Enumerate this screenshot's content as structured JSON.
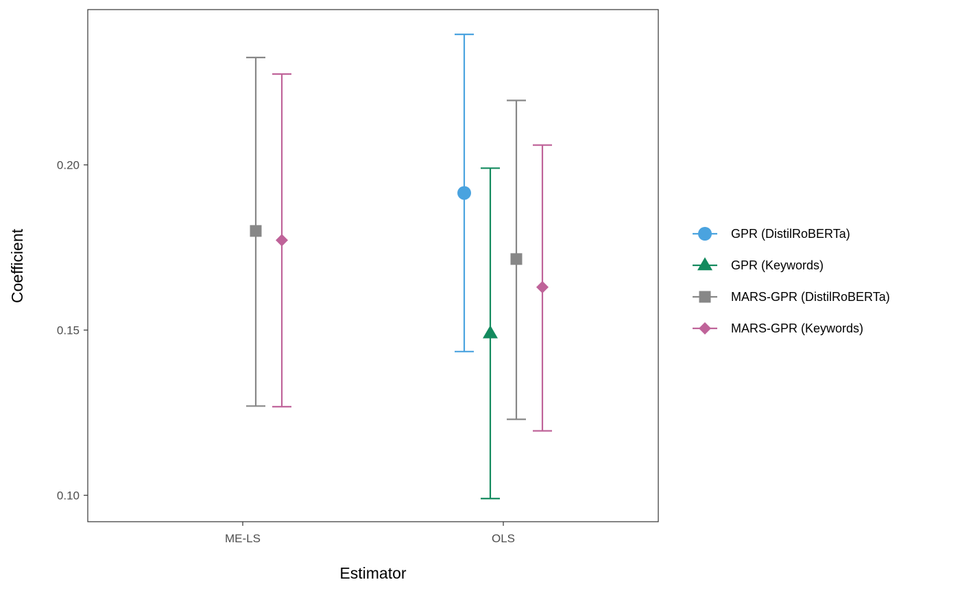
{
  "chart_data": {
    "type": "errorbar",
    "title": "",
    "xlabel": "Estimator",
    "ylabel": "Coefficient",
    "categories": [
      "ME-LS",
      "OLS"
    ],
    "ylim": [
      0.092,
      0.247
    ],
    "yticks": [
      0.1,
      0.15,
      0.2
    ],
    "ytick_labels": [
      "0.10",
      "0.15",
      "0.20"
    ],
    "grid": false,
    "legend_position": "right",
    "series": [
      {
        "name": "GPR (DistilRoBERTa)",
        "color": "#4aa3df",
        "marker": "circle",
        "points": [
          {
            "category": "OLS",
            "estimate": 0.1915,
            "lower": 0.1435,
            "upper": 0.2395
          }
        ]
      },
      {
        "name": "GPR (Keywords)",
        "color": "#138a5e",
        "marker": "triangle",
        "points": [
          {
            "category": "OLS",
            "estimate": 0.149,
            "lower": 0.099,
            "upper": 0.199
          }
        ]
      },
      {
        "name": "MARS-GPR (DistilRoBERTa)",
        "color": "#878787",
        "marker": "square",
        "points": [
          {
            "category": "ME-LS",
            "estimate": 0.18,
            "lower": 0.127,
            "upper": 0.2325
          },
          {
            "category": "OLS",
            "estimate": 0.1715,
            "lower": 0.123,
            "upper": 0.2195
          }
        ]
      },
      {
        "name": "MARS-GPR (Keywords)",
        "color": "#bf6399",
        "marker": "diamond",
        "points": [
          {
            "category": "ME-LS",
            "estimate": 0.1772,
            "lower": 0.1268,
            "upper": 0.2275
          },
          {
            "category": "OLS",
            "estimate": 0.163,
            "lower": 0.1195,
            "upper": 0.206
          }
        ]
      }
    ]
  }
}
